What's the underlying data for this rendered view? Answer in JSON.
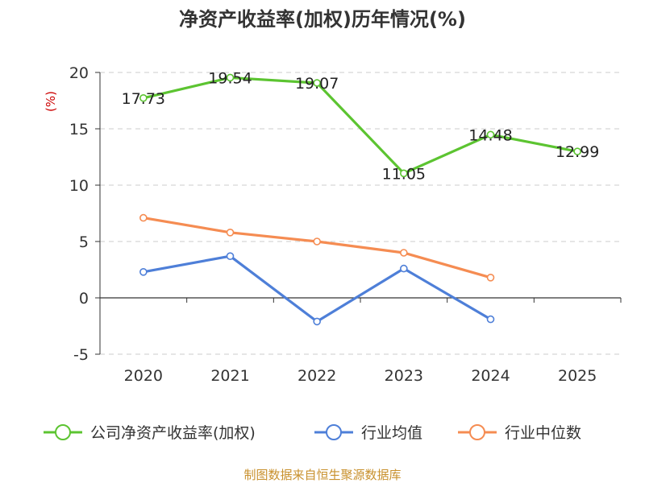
{
  "chart_data": {
    "type": "line",
    "title": "净资产收益率(加权)历年情况(%)",
    "ylabel": "(%)",
    "xlabel": "",
    "categories": [
      "2020",
      "2021",
      "2022",
      "2023",
      "2024",
      "2025"
    ],
    "ylim": [
      -5,
      20
    ],
    "yticks": [
      -5,
      0,
      5,
      10,
      15,
      20
    ],
    "grid": "horizontal dashed",
    "legend_position": "bottom",
    "series": [
      {
        "name": "公司净资产收益率(加权)",
        "color": "#5cc431",
        "values": [
          17.73,
          19.54,
          19.07,
          11.05,
          14.48,
          12.99
        ],
        "labels": [
          "17.73",
          "19.54",
          "19.07",
          "11.05",
          "14.48",
          "12.99"
        ]
      },
      {
        "name": "行业均值",
        "color": "#4e7fd8",
        "values": [
          2.3,
          3.7,
          -2.1,
          2.6,
          -1.9,
          null
        ]
      },
      {
        "name": "行业中位数",
        "color": "#f58c52",
        "values": [
          7.1,
          5.8,
          5.0,
          4.0,
          1.8,
          null
        ]
      }
    ]
  },
  "footer": {
    "source": "制图数据来自恒生聚源数据库"
  }
}
